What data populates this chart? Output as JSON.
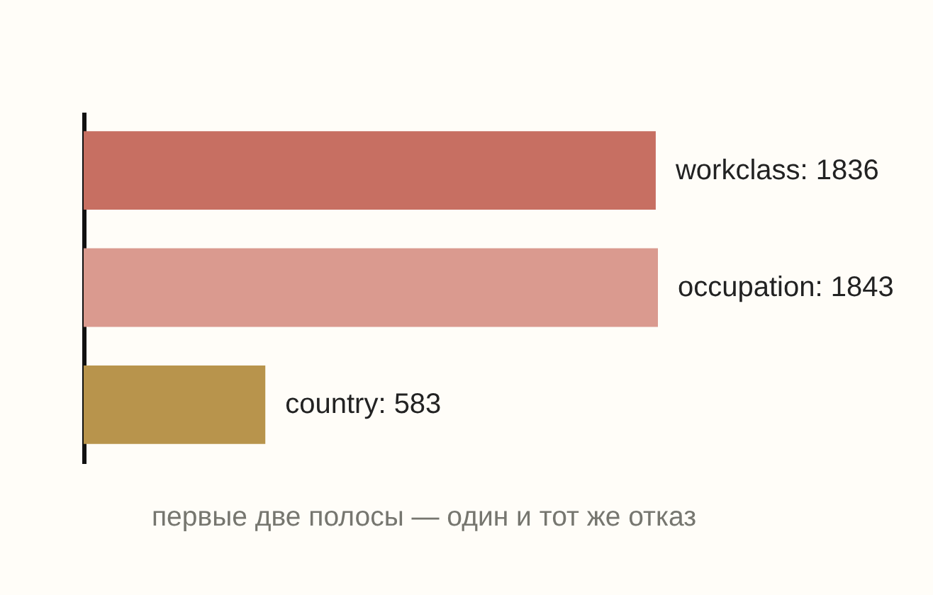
{
  "chart_data": {
    "type": "bar",
    "orientation": "horizontal",
    "categories": [
      null,
      null,
      null
    ],
    "values": [
      1836,
      1843,
      583
    ],
    "colors": [
      "#c76f62",
      "#da9a8f",
      "#b8944c"
    ],
    "value_labels": [
      "workclass: 1836",
      "occupation: 1843",
      "country: 583"
    ],
    "annotations": [
      "первые две полосы — один и тот же отказ"
    ],
    "tick_labels": false
  }
}
